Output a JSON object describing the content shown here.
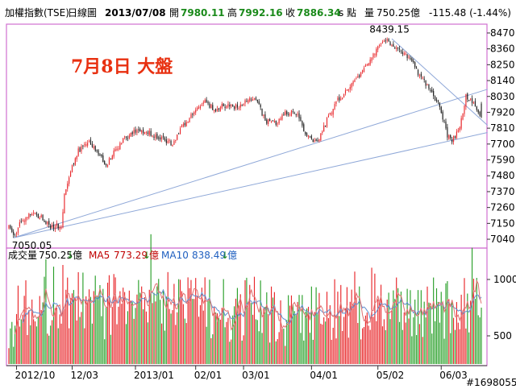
{
  "header": {
    "index_name": "加權指數(TSE)",
    "period": "日線圖",
    "date": "2013/07/08",
    "open_label": "開",
    "open_value": "7980.11",
    "high_label": "高",
    "high_value": "7992.16",
    "close_label": "收",
    "close_value": "7886.34",
    "s_label": "s",
    "points_label": "點",
    "volume_label": "量",
    "volume_value": "750.25",
    "volume_unit": "億",
    "change": "-115.48 (-1.44%)"
  },
  "annotation": {
    "title": "7月8日  大盤"
  },
  "volume_header": {
    "label": "成交量",
    "value": "750.25",
    "unit": "億",
    "ma5_label": "MA5",
    "ma5_value": "773.29",
    "ma10_label": "MA10",
    "ma10_value": "838.49",
    "arrow": "↓"
  },
  "watermark": "#1698055",
  "colors": {
    "up": "#e8262a",
    "down": "#1a1a1a",
    "vol_up": "#e8262a",
    "vol_down": "#2aa02a",
    "trend": "#8fa8d8",
    "ma5": "#e07070",
    "ma10": "#6090d0",
    "frame": "#d070d0",
    "header_green": "#1a8a1a",
    "header_red": "#c00000",
    "title_red": "#e83010",
    "axis_text": "#000000"
  },
  "chart_data": {
    "type": "candlestick",
    "price_axis": {
      "ticks": [
        7040,
        7150,
        7260,
        7370,
        7480,
        7590,
        7700,
        7810,
        7920,
        8030,
        8140,
        8250,
        8360,
        8470
      ],
      "range": [
        6990,
        8520
      ]
    },
    "volume_axis": {
      "ticks": [
        500,
        1000
      ],
      "range": [
        250,
        1250
      ]
    },
    "x_labels": [
      "2012/10",
      "12/03",
      "2013/01",
      "02/01",
      "03/01",
      "04/01",
      "05/02",
      "06/03"
    ],
    "x_label_positions": [
      5,
      41,
      82,
      121,
      152,
      196,
      239,
      280
    ],
    "annotations": [
      {
        "text": "8439.15",
        "bar": 245,
        "value": 8439.15,
        "position": "above"
      },
      {
        "text": "7050.05",
        "bar": 3,
        "value": 7050.05,
        "position": "below"
      }
    ],
    "trendlines": [
      {
        "from_bar": 3,
        "from_value": 7050,
        "to_bar": 310,
        "to_value": 8080
      },
      {
        "from_bar": 3,
        "from_value": 7050,
        "to_bar": 310,
        "to_value": 7780
      },
      {
        "from_bar": 248,
        "from_value": 8430,
        "to_bar": 310,
        "to_value": 7830
      }
    ],
    "price_anchors": [
      [
        0,
        7120
      ],
      [
        3,
        7050
      ],
      [
        8,
        7170
      ],
      [
        14,
        7230
      ],
      [
        20,
        7200
      ],
      [
        28,
        7120
      ],
      [
        34,
        7140
      ],
      [
        36,
        7350
      ],
      [
        40,
        7520
      ],
      [
        45,
        7650
      ],
      [
        52,
        7710
      ],
      [
        57,
        7660
      ],
      [
        63,
        7550
      ],
      [
        68,
        7640
      ],
      [
        75,
        7740
      ],
      [
        82,
        7790
      ],
      [
        90,
        7780
      ],
      [
        97,
        7740
      ],
      [
        106,
        7700
      ],
      [
        112,
        7830
      ],
      [
        120,
        7910
      ],
      [
        127,
        7990
      ],
      [
        133,
        7940
      ],
      [
        140,
        7970
      ],
      [
        148,
        7960
      ],
      [
        156,
        8020
      ],
      [
        161,
        7990
      ],
      [
        166,
        7860
      ],
      [
        173,
        7850
      ],
      [
        180,
        7920
      ],
      [
        187,
        7910
      ],
      [
        192,
        7770
      ],
      [
        200,
        7700
      ],
      [
        205,
        7840
      ],
      [
        212,
        8000
      ],
      [
        220,
        8080
      ],
      [
        226,
        8170
      ],
      [
        233,
        8260
      ],
      [
        240,
        8380
      ],
      [
        245,
        8430
      ],
      [
        250,
        8360
      ],
      [
        255,
        8330
      ],
      [
        260,
        8300
      ],
      [
        265,
        8180
      ],
      [
        270,
        8120
      ],
      [
        274,
        8040
      ],
      [
        279,
        7960
      ],
      [
        284,
        7760
      ],
      [
        287,
        7720
      ],
      [
        292,
        7820
      ],
      [
        296,
        8040
      ],
      [
        300,
        7980
      ],
      [
        303,
        7950
      ],
      [
        306,
        7890
      ]
    ],
    "volume_anchors": [
      [
        0,
        700
      ],
      [
        10,
        760
      ],
      [
        20,
        780
      ],
      [
        30,
        820
      ],
      [
        40,
        860
      ],
      [
        50,
        820
      ],
      [
        60,
        780
      ],
      [
        70,
        860
      ],
      [
        80,
        900
      ],
      [
        90,
        820
      ],
      [
        100,
        760
      ],
      [
        110,
        800
      ],
      [
        120,
        850
      ],
      [
        130,
        780
      ],
      [
        140,
        820
      ],
      [
        150,
        800
      ],
      [
        160,
        830
      ],
      [
        170,
        740
      ],
      [
        180,
        720
      ],
      [
        190,
        700
      ],
      [
        200,
        740
      ],
      [
        210,
        780
      ],
      [
        220,
        830
      ],
      [
        230,
        850
      ],
      [
        240,
        880
      ],
      [
        250,
        820
      ],
      [
        260,
        800
      ],
      [
        270,
        790
      ],
      [
        280,
        800
      ],
      [
        290,
        850
      ],
      [
        300,
        860
      ],
      [
        306,
        790
      ]
    ],
    "bar_count": 307,
    "last_bar": {
      "open": 7980.11,
      "high": 7992.16,
      "low": 7880,
      "close": 7886.34,
      "volume": 750.25
    },
    "seed": 20130708
  }
}
